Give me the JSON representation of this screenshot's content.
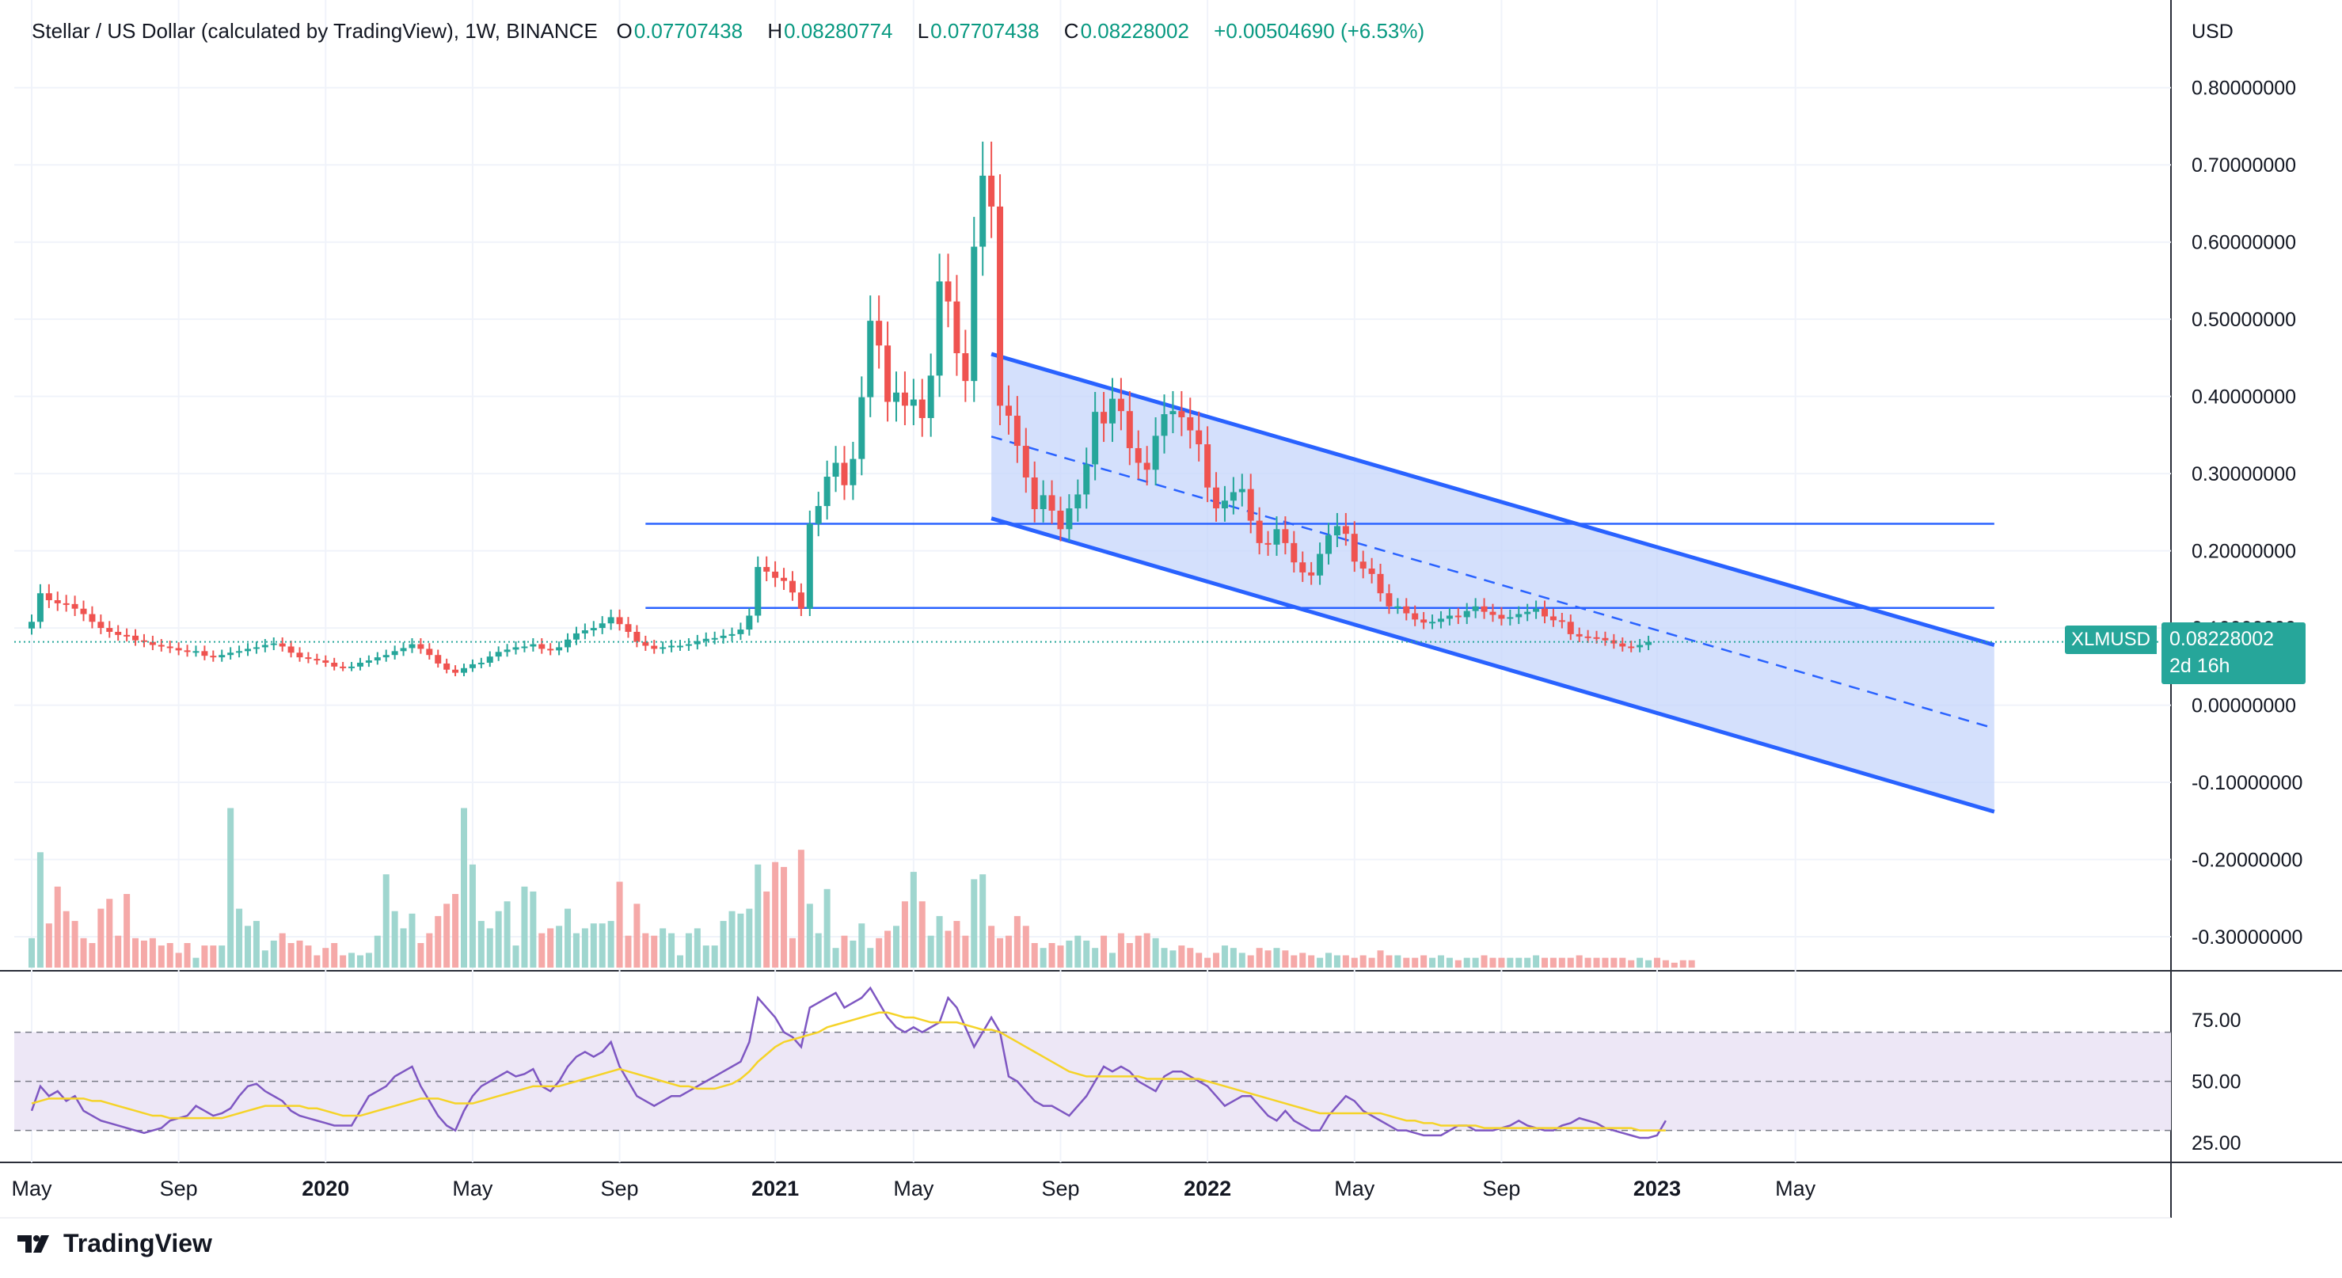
{
  "header": {
    "title": "Stellar / US Dollar (calculated by TradingView), 1W, BINANCE",
    "open_label": "O",
    "open": "0.07707438",
    "high_label": "H",
    "high": "0.08280774",
    "low_label": "L",
    "low": "0.07707438",
    "close_label": "C",
    "close": "0.08228002",
    "change": "+0.00504690 (+6.53%)"
  },
  "price_tag": {
    "symbol": "XLMUSD",
    "price": "0.08228002",
    "countdown": "2d 16h"
  },
  "brand": {
    "name": "TradingView"
  },
  "colors": {
    "up": "#26a69a",
    "down": "#ef5350",
    "channel_fill": "#c6d5fb",
    "channel_line": "#2962ff",
    "rsi": "#7e57c2",
    "rsi_ma": "#f5d328",
    "rsi_band": "#ede7f6"
  },
  "chart_data": {
    "type": "candlestick",
    "currency": "USD",
    "y_ticks": [
      "0.80000000",
      "0.70000000",
      "0.60000000",
      "0.50000000",
      "0.40000000",
      "0.30000000",
      "0.20000000",
      "0.10000000",
      "0.00000000",
      "-0.10000000",
      "-0.20000000",
      "-0.30000000"
    ],
    "ylim": [
      -0.34,
      0.85
    ],
    "x_ticks": [
      {
        "label": "May",
        "t": 0
      },
      {
        "label": "Sep",
        "t": 17
      },
      {
        "label": "2020",
        "t": 34
      },
      {
        "label": "May",
        "t": 51
      },
      {
        "label": "Sep",
        "t": 68
      },
      {
        "label": "2021",
        "t": 86
      },
      {
        "label": "May",
        "t": 102
      },
      {
        "label": "Sep",
        "t": 119
      },
      {
        "label": "2022",
        "t": 136
      },
      {
        "label": "May",
        "t": 153
      },
      {
        "label": "Sep",
        "t": 170
      },
      {
        "label": "2023",
        "t": 188
      },
      {
        "label": "May",
        "t": 204
      }
    ],
    "weekly_close": [
      0.108,
      0.145,
      0.136,
      0.132,
      0.131,
      0.125,
      0.118,
      0.108,
      0.1,
      0.095,
      0.091,
      0.09,
      0.084,
      0.082,
      0.078,
      0.076,
      0.074,
      0.071,
      0.069,
      0.07,
      0.064,
      0.062,
      0.065,
      0.068,
      0.07,
      0.073,
      0.075,
      0.078,
      0.08,
      0.076,
      0.068,
      0.062,
      0.06,
      0.058,
      0.055,
      0.05,
      0.049,
      0.05,
      0.055,
      0.058,
      0.062,
      0.065,
      0.07,
      0.074,
      0.079,
      0.073,
      0.065,
      0.054,
      0.046,
      0.042,
      0.048,
      0.053,
      0.055,
      0.063,
      0.069,
      0.072,
      0.075,
      0.076,
      0.079,
      0.073,
      0.071,
      0.075,
      0.085,
      0.093,
      0.097,
      0.1,
      0.106,
      0.114,
      0.105,
      0.095,
      0.082,
      0.077,
      0.073,
      0.075,
      0.077,
      0.077,
      0.079,
      0.083,
      0.086,
      0.087,
      0.09,
      0.092,
      0.098,
      0.116,
      0.179,
      0.173,
      0.165,
      0.161,
      0.146,
      0.125,
      0.235,
      0.258,
      0.296,
      0.314,
      0.285,
      0.319,
      0.399,
      0.498,
      0.466,
      0.393,
      0.405,
      0.388,
      0.396,
      0.372,
      0.427,
      0.549,
      0.523,
      0.456,
      0.42,
      0.594,
      0.686,
      0.646,
      0.388,
      0.375,
      0.336,
      0.295,
      0.254,
      0.272,
      0.252,
      0.228,
      0.255,
      0.273,
      0.312,
      0.38,
      0.365,
      0.397,
      0.381,
      0.333,
      0.314,
      0.305,
      0.349,
      0.377,
      0.381,
      0.373,
      0.356,
      0.338,
      0.282,
      0.255,
      0.265,
      0.276,
      0.28,
      0.239,
      0.21,
      0.208,
      0.228,
      0.21,
      0.185,
      0.172,
      0.168,
      0.196,
      0.22,
      0.232,
      0.222,
      0.186,
      0.177,
      0.17,
      0.145,
      0.128,
      0.128,
      0.119,
      0.111,
      0.107,
      0.108,
      0.112,
      0.116,
      0.114,
      0.122,
      0.128,
      0.121,
      0.117,
      0.112,
      0.114,
      0.118,
      0.121,
      0.125,
      0.115,
      0.11,
      0.108,
      0.092,
      0.089,
      0.088,
      0.087,
      0.084,
      0.08,
      0.076,
      0.075,
      0.078,
      0.082
    ],
    "weekly_volume_rel": [
      0.12,
      0.47,
      0.18,
      0.33,
      0.23,
      0.19,
      0.12,
      0.1,
      0.24,
      0.28,
      0.13,
      0.3,
      0.12,
      0.11,
      0.12,
      0.09,
      0.1,
      0.06,
      0.1,
      0.04,
      0.09,
      0.09,
      0.09,
      0.65,
      0.24,
      0.17,
      0.19,
      0.07,
      0.11,
      0.14,
      0.1,
      0.11,
      0.09,
      0.05,
      0.08,
      0.1,
      0.05,
      0.06,
      0.05,
      0.06,
      0.13,
      0.38,
      0.23,
      0.16,
      0.22,
      0.1,
      0.14,
      0.21,
      0.26,
      0.3,
      0.65,
      0.42,
      0.19,
      0.16,
      0.23,
      0.27,
      0.09,
      0.33,
      0.31,
      0.14,
      0.16,
      0.17,
      0.24,
      0.14,
      0.16,
      0.18,
      0.18,
      0.19,
      0.35,
      0.13,
      0.26,
      0.14,
      0.13,
      0.16,
      0.14,
      0.05,
      0.14,
      0.16,
      0.09,
      0.09,
      0.19,
      0.23,
      0.22,
      0.24,
      0.42,
      0.31,
      0.43,
      0.41,
      0.12,
      0.48,
      0.26,
      0.14,
      0.32,
      0.08,
      0.13,
      0.11,
      0.18,
      0.08,
      0.12,
      0.15,
      0.17,
      0.27,
      0.39,
      0.27,
      0.13,
      0.21,
      0.15,
      0.19,
      0.13,
      0.36,
      0.38,
      0.17,
      0.12,
      0.13,
      0.21,
      0.17,
      0.1,
      0.08,
      0.1,
      0.09,
      0.11,
      0.13,
      0.11,
      0.08,
      0.13,
      0.06,
      0.14,
      0.1,
      0.13,
      0.14,
      0.12,
      0.08,
      0.07,
      0.09,
      0.08,
      0.06,
      0.04,
      0.06,
      0.09,
      0.08,
      0.06,
      0.05,
      0.08,
      0.07,
      0.08,
      0.07,
      0.05,
      0.06,
      0.05,
      0.04,
      0.06,
      0.05,
      0.05,
      0.04,
      0.05,
      0.04,
      0.07,
      0.05,
      0.05,
      0.04,
      0.04,
      0.05,
      0.04,
      0.05,
      0.04,
      0.03,
      0.04,
      0.04,
      0.05,
      0.04,
      0.04,
      0.04,
      0.04,
      0.04,
      0.05,
      0.04,
      0.04,
      0.04,
      0.04,
      0.05,
      0.04,
      0.04,
      0.04,
      0.04,
      0.04,
      0.03,
      0.04,
      0.03,
      0.04,
      0.03,
      0.02,
      0.03,
      0.03
    ],
    "rsi_ticks": [
      "75.00",
      "50.00",
      "25.00"
    ],
    "rsi_levels": [
      70,
      50,
      30
    ],
    "rsi_ylim": [
      17,
      95
    ],
    "rsi": [
      38,
      48,
      44,
      46,
      42,
      44,
      38,
      36,
      34,
      33,
      32,
      31,
      30,
      29,
      30,
      31,
      34,
      35,
      36,
      40,
      38,
      36,
      37,
      39,
      44,
      48,
      49,
      46,
      44,
      42,
      38,
      36,
      35,
      34,
      33,
      32,
      32,
      32,
      38,
      44,
      46,
      48,
      52,
      54,
      56,
      48,
      42,
      36,
      32,
      30,
      38,
      44,
      48,
      50,
      52,
      54,
      52,
      53,
      55,
      48,
      46,
      50,
      56,
      60,
      62,
      60,
      62,
      66,
      56,
      50,
      44,
      42,
      40,
      42,
      44,
      44,
      46,
      48,
      50,
      52,
      54,
      56,
      58,
      66,
      84,
      80,
      76,
      70,
      68,
      64,
      80,
      82,
      84,
      86,
      80,
      82,
      84,
      88,
      82,
      76,
      72,
      70,
      72,
      70,
      72,
      74,
      84,
      80,
      72,
      64,
      70,
      76,
      70,
      52,
      50,
      46,
      42,
      40,
      40,
      38,
      36,
      40,
      44,
      50,
      56,
      54,
      56,
      54,
      50,
      48,
      46,
      52,
      54,
      54,
      52,
      50,
      48,
      44,
      40,
      42,
      44,
      44,
      40,
      36,
      34,
      38,
      34,
      32,
      30,
      30,
      36,
      40,
      44,
      42,
      38,
      36,
      34,
      32,
      30,
      30,
      29,
      28,
      28,
      28,
      30,
      32,
      32,
      30,
      30,
      30,
      31,
      32,
      34,
      32,
      31,
      30,
      30,
      32,
      33,
      35,
      34,
      33,
      31,
      30,
      29,
      28,
      27,
      27,
      28,
      34
    ],
    "rsi_ma": [
      41,
      42,
      43,
      43,
      43,
      43,
      43,
      42,
      42,
      41,
      40,
      39,
      38,
      37,
      36,
      36,
      35,
      35,
      35,
      35,
      35,
      35,
      35,
      36,
      37,
      38,
      39,
      40,
      40,
      40,
      40,
      40,
      39,
      39,
      38,
      37,
      36,
      36,
      36,
      37,
      38,
      39,
      40,
      41,
      42,
      43,
      43,
      43,
      42,
      41,
      41,
      41,
      42,
      43,
      44,
      45,
      46,
      47,
      48,
      48,
      48,
      48,
      49,
      50,
      51,
      52,
      53,
      54,
      55,
      54,
      53,
      52,
      51,
      50,
      49,
      48,
      48,
      47,
      47,
      47,
      48,
      49,
      51,
      54,
      58,
      61,
      64,
      66,
      67,
      68,
      69,
      70,
      72,
      73,
      74,
      75,
      76,
      77,
      78,
      78,
      77,
      76,
      76,
      75,
      74,
      74,
      74,
      74,
      73,
      72,
      71,
      71,
      70,
      68,
      66,
      64,
      62,
      60,
      58,
      56,
      54,
      53,
      52,
      52,
      52,
      52,
      52,
      52,
      52,
      51,
      51,
      51,
      51,
      51,
      51,
      51,
      50,
      49,
      48,
      47,
      46,
      45,
      44,
      43,
      42,
      41,
      40,
      39,
      38,
      37,
      37,
      37,
      37,
      37,
      37,
      37,
      37,
      36,
      35,
      34,
      34,
      33,
      33,
      32,
      32,
      32,
      32,
      32,
      31,
      31,
      31,
      31,
      31,
      31,
      31,
      31,
      31,
      31,
      31,
      31,
      31,
      31,
      31,
      31,
      31,
      31,
      30,
      30,
      30,
      30
    ],
    "horizontal_levels": [
      {
        "price": 0.235,
        "t_start": 71,
        "t_end": 227
      },
      {
        "price": 0.126,
        "t_start": 71,
        "t_end": 227
      }
    ],
    "descending_channel": {
      "upper": [
        [
          111,
          0.455
        ],
        [
          227,
          0.078
        ]
      ],
      "lower": [
        [
          111,
          0.242
        ],
        [
          227,
          -0.138
        ]
      ],
      "mid": [
        [
          111,
          0.348
        ],
        [
          227,
          -0.03
        ]
      ]
    }
  }
}
